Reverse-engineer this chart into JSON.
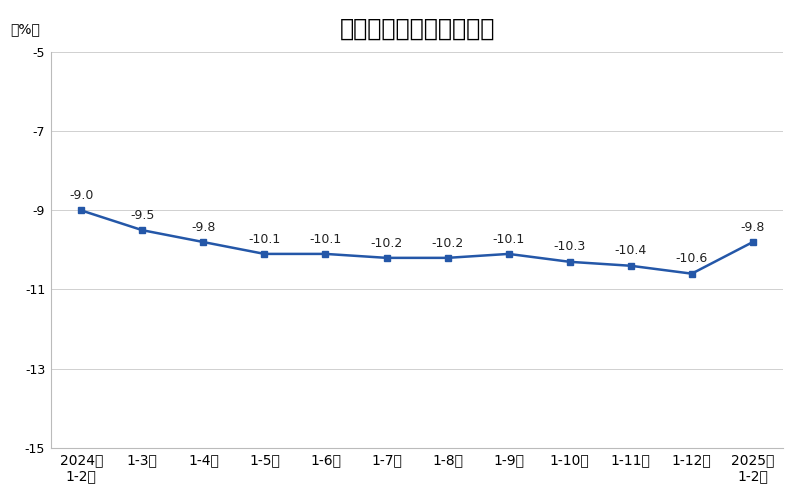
{
  "title": "全国房地产开发投资增速",
  "ylabel": "（%）",
  "x_labels": [
    "2024年\n1-2月",
    "1-3月",
    "1-4月",
    "1-5月",
    "1-6月",
    "1-7月",
    "1-8月",
    "1-9月",
    "1-10月",
    "1-11月",
    "1-12月",
    "2025年\n1-2月"
  ],
  "values": [
    -9.0,
    -9.5,
    -9.8,
    -10.1,
    -10.1,
    -10.2,
    -10.2,
    -10.1,
    -10.3,
    -10.4,
    -10.6,
    -9.8
  ],
  "annotations": [
    "-9.0",
    "-9.5",
    "-9.8",
    "-10.1",
    "-10.1",
    "-10.2",
    "-10.2",
    "-10.1",
    "-10.3",
    "-10.4",
    "-10.6",
    "-9.8"
  ],
  "ylim": [
    -15,
    -5
  ],
  "yticks": [
    -15,
    -13,
    -11,
    -9,
    -7,
    -5
  ],
  "line_color": "#2457A8",
  "marker_color": "#2457A8",
  "bg_color": "#FFFFFF",
  "plot_bg_color": "#FFFFFF",
  "title_fontsize": 17,
  "label_fontsize": 10,
  "annotation_fontsize": 9,
  "tick_fontsize": 9
}
